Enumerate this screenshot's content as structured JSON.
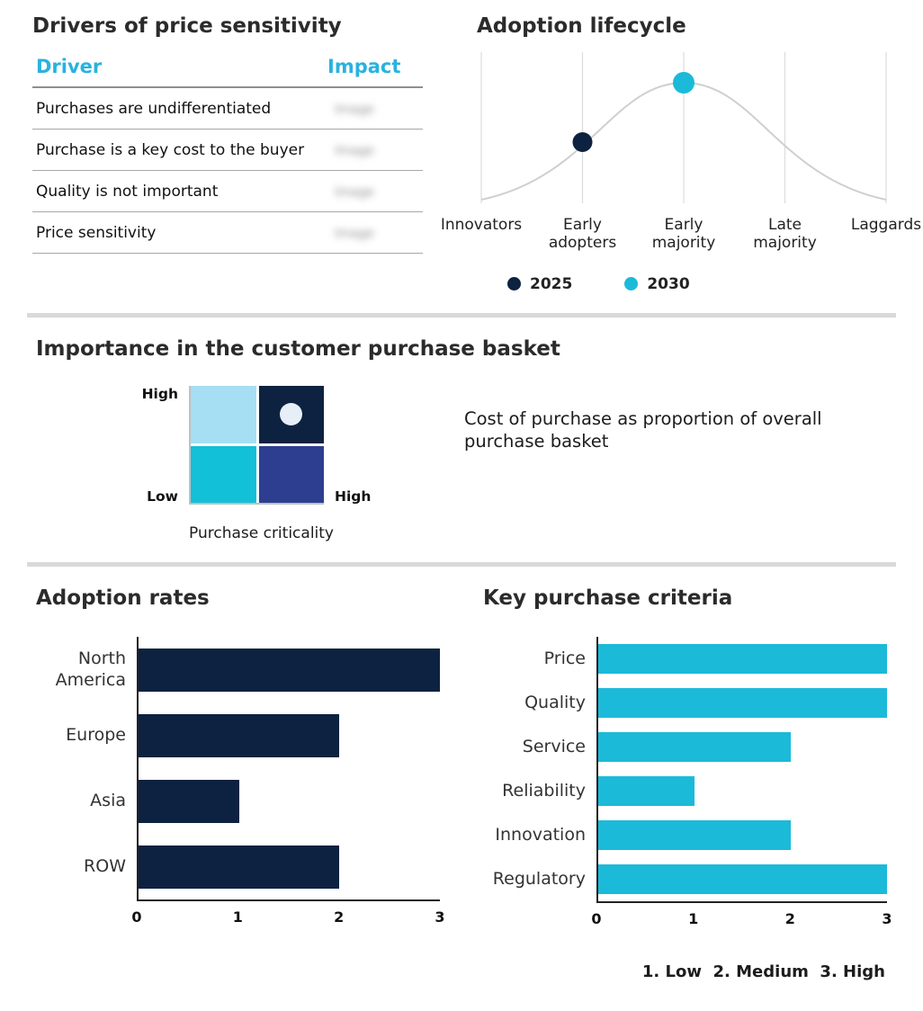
{
  "colors": {
    "navy": "#0d2240",
    "cyan": "#1bbad9",
    "table_header_cyan": "#29b2e0",
    "quad_top_left": "#a6def4",
    "quad_top_right": "#0d2240",
    "quad_bottom_left": "#12c0d8",
    "quad_bottom_right": "#2d3e90",
    "quad_marker_light": "#e6eef8",
    "divider_gray": "#d9d9d9"
  },
  "drivers": {
    "title": "Drivers of price sensitivity",
    "columns": [
      "Driver",
      "Impact"
    ],
    "rows": [
      "Purchases are undifferentiated",
      "Purchase is a key cost to the buyer",
      "Quality is not important",
      "Price sensitivity"
    ],
    "impact_placeholder": "Image"
  },
  "basket": {
    "title": "Importance in the customer purchase basket",
    "y_axis_top": "High",
    "y_axis_bottom": "Low",
    "x_axis_end": "High",
    "x_axis_label": "Purchase criticality",
    "annotation": "Cost of purchase as proportion of overall purchase basket",
    "highlight_quadrant": "top-right"
  },
  "chart_data": [
    {
      "id": "adoption-lifecycle",
      "type": "line",
      "title": "Adoption lifecycle",
      "x": [
        "Innovators",
        "Early adopters",
        "Early majority",
        "Late majority",
        "Laggards"
      ],
      "curve": "bell curve peaking at Early majority",
      "grid": true,
      "points": [
        {
          "name": "2025",
          "x": "Early adopters",
          "color": "#0d2240"
        },
        {
          "name": "2030",
          "x": "Early majority",
          "color": "#1bbad9"
        }
      ],
      "legend": [
        "2025",
        "2030"
      ],
      "legend_position": "bottom"
    },
    {
      "id": "purchase-basket-matrix",
      "type": "heatmap",
      "title": "Importance in the customer purchase basket",
      "rows": [
        "High",
        "Low"
      ],
      "cells": [
        [
          "light-blue",
          "navy-with-marker"
        ],
        [
          "cyan",
          "indigo"
        ]
      ],
      "xlabel": "Purchase criticality"
    },
    {
      "id": "adoption-rates",
      "type": "bar",
      "orientation": "horizontal",
      "title": "Adoption rates",
      "categories": [
        "North America",
        "Europe",
        "Asia",
        "ROW"
      ],
      "values": [
        3,
        2,
        1,
        2
      ],
      "xlim": [
        0,
        3
      ],
      "xticks": [
        0,
        1,
        2,
        3
      ],
      "bar_color": "#0d2240"
    },
    {
      "id": "key-purchase-criteria",
      "type": "bar",
      "orientation": "horizontal",
      "title": "Key purchase criteria",
      "categories": [
        "Price",
        "Quality",
        "Service",
        "Reliability",
        "Innovation",
        "Regulatory"
      ],
      "values": [
        3,
        3,
        2,
        1,
        2,
        3
      ],
      "xlim": [
        0,
        3
      ],
      "xticks": [
        0,
        1,
        2,
        3
      ],
      "bar_color": "#1bbad9",
      "note": "1. Low  2. Medium  3. High"
    }
  ]
}
